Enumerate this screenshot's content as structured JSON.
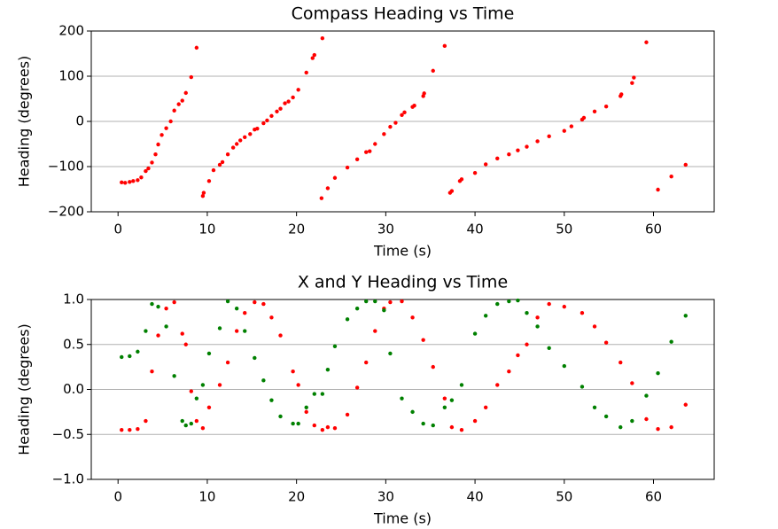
{
  "chart_data": [
    {
      "type": "scatter",
      "title": "Compass Heading vs Time",
      "xlabel": "Time (s)",
      "ylabel": "Heading (degrees)",
      "xlim": [
        -3,
        66.8
      ],
      "ylim": [
        -200,
        200
      ],
      "xticks": [
        0,
        10,
        20,
        30,
        40,
        50,
        60
      ],
      "yticks": [
        {
          "value": -200,
          "label": "−200"
        },
        {
          "value": -100,
          "label": "−100"
        },
        0,
        100,
        200
      ],
      "grid": "y",
      "color": "red",
      "x": [
        0.4,
        0.8,
        1.3,
        1.7,
        2.2,
        2.6,
        3.1,
        3.4,
        3.8,
        4.2,
        4.5,
        4.9,
        5.4,
        5.9,
        6.3,
        6.8,
        7.2,
        7.6,
        8.2,
        8.8,
        9.5,
        9.6,
        10.2,
        10.7,
        11.4,
        11.7,
        12.3,
        12.9,
        13.3,
        13.7,
        14.2,
        14.8,
        15.3,
        15.6,
        16.3,
        16.7,
        17.2,
        17.8,
        18.2,
        18.7,
        19.1,
        19.6,
        20.2,
        21.1,
        21.8,
        22.0,
        22.9,
        22.8,
        23.5,
        24.3,
        25.7,
        26.8,
        27.8,
        28.2,
        28.8,
        29.8,
        30.5,
        31.1,
        31.8,
        32.1,
        33.0,
        33.2,
        34.2,
        34.3,
        35.3,
        36.6,
        37.2,
        37.4,
        38.3,
        38.5,
        40.0,
        41.2,
        42.5,
        43.8,
        44.8,
        45.8,
        47.0,
        48.3,
        50.0,
        50.8,
        52.0,
        52.2,
        53.4,
        54.7,
        56.3,
        56.4,
        57.6,
        57.8,
        59.2,
        60.5,
        62.0,
        63.6
      ],
      "values": [
        -135,
        -136,
        -134,
        -132,
        -130,
        -124,
        -110,
        -104,
        -91,
        -73,
        -51,
        -30,
        -15,
        0,
        24,
        38,
        46,
        63,
        98,
        163,
        -165,
        -158,
        -132,
        -108,
        -96,
        -90,
        -73,
        -58,
        -50,
        -42,
        -35,
        -28,
        -18,
        -16,
        -4,
        2,
        12,
        22,
        28,
        40,
        44,
        53,
        70,
        108,
        140,
        147,
        184,
        -170,
        -148,
        -125,
        -102,
        -84,
        -68,
        -66,
        -50,
        -28,
        -12,
        -3,
        14,
        20,
        32,
        35,
        56,
        62,
        112,
        167,
        -158,
        -154,
        -132,
        -128,
        -114,
        -95,
        -82,
        -73,
        -64,
        -56,
        -44,
        -33,
        -21,
        -11,
        4,
        8,
        22,
        33,
        56,
        60,
        85,
        97,
        175,
        -151,
        -122,
        -96
      ]
    },
    {
      "type": "scatter",
      "title": "X and Y Heading vs Time",
      "xlabel": "Time (s)",
      "ylabel": "Heading (degrees)",
      "xlim": [
        -3,
        66.8
      ],
      "ylim": [
        -1,
        1
      ],
      "xticks": [
        0,
        10,
        20,
        30,
        40,
        50,
        60
      ],
      "yticks": [
        {
          "value": -1,
          "label": "−1.0"
        },
        {
          "value": -0.5,
          "label": "−0.5"
        },
        {
          "value": 0,
          "label": "0.0"
        },
        0.5,
        {
          "value": 1,
          "label": "1.0"
        }
      ],
      "grid": "y",
      "x": [
        0.4,
        1.3,
        2.2,
        3.1,
        3.8,
        4.5,
        5.4,
        6.3,
        7.2,
        7.6,
        8.2,
        8.8,
        9.5,
        10.2,
        11.4,
        12.3,
        13.3,
        14.2,
        15.3,
        16.3,
        17.2,
        18.2,
        19.6,
        20.2,
        21.1,
        22.0,
        22.9,
        23.5,
        24.3,
        25.7,
        26.8,
        27.8,
        28.8,
        29.8,
        30.5,
        31.8,
        33.0,
        34.2,
        35.3,
        36.6,
        37.4,
        38.5,
        40.0,
        41.2,
        42.5,
        43.8,
        44.8,
        45.8,
        47.0,
        48.3,
        50.0,
        52.0,
        53.4,
        54.7,
        56.3,
        57.6,
        59.2,
        60.5,
        62.0,
        63.6
      ],
      "series": [
        {
          "color": "red",
          "values": [
            -0.45,
            -0.45,
            -0.44,
            -0.35,
            0.2,
            0.6,
            0.9,
            0.97,
            0.62,
            0.5,
            -0.02,
            -0.35,
            -0.43,
            -0.2,
            0.05,
            0.3,
            0.65,
            0.85,
            0.97,
            0.95,
            0.8,
            0.6,
            0.2,
            0.05,
            -0.25,
            -0.4,
            -0.45,
            -0.42,
            -0.43,
            -0.28,
            0.02,
            0.3,
            0.65,
            0.9,
            0.97,
            0.98,
            0.8,
            0.55,
            0.25,
            -0.1,
            -0.42,
            -0.45,
            -0.35,
            -0.2,
            0.05,
            0.2,
            0.38,
            0.5,
            0.8,
            0.95,
            0.92,
            0.85,
            0.7,
            0.52,
            0.3,
            0.07,
            -0.33,
            -0.44,
            -0.42,
            -0.17
          ]
        },
        {
          "color": "green",
          "values": [
            0.36,
            0.37,
            0.42,
            0.65,
            0.95,
            0.92,
            0.7,
            0.15,
            -0.35,
            -0.4,
            -0.38,
            -0.1,
            0.05,
            0.4,
            0.68,
            0.98,
            0.9,
            0.65,
            0.35,
            0.1,
            -0.12,
            -0.3,
            -0.38,
            -0.38,
            -0.2,
            -0.05,
            -0.05,
            0.22,
            0.48,
            0.78,
            0.9,
            0.98,
            0.98,
            0.88,
            0.4,
            -0.1,
            -0.25,
            -0.38,
            -0.4,
            -0.2,
            -0.12,
            0.05,
            0.62,
            0.82,
            0.95,
            0.98,
            0.99,
            0.85,
            0.7,
            0.46,
            0.26,
            0.03,
            -0.2,
            -0.3,
            -0.42,
            -0.35,
            -0.07,
            0.18,
            0.53,
            0.82
          ]
        }
      ]
    }
  ]
}
